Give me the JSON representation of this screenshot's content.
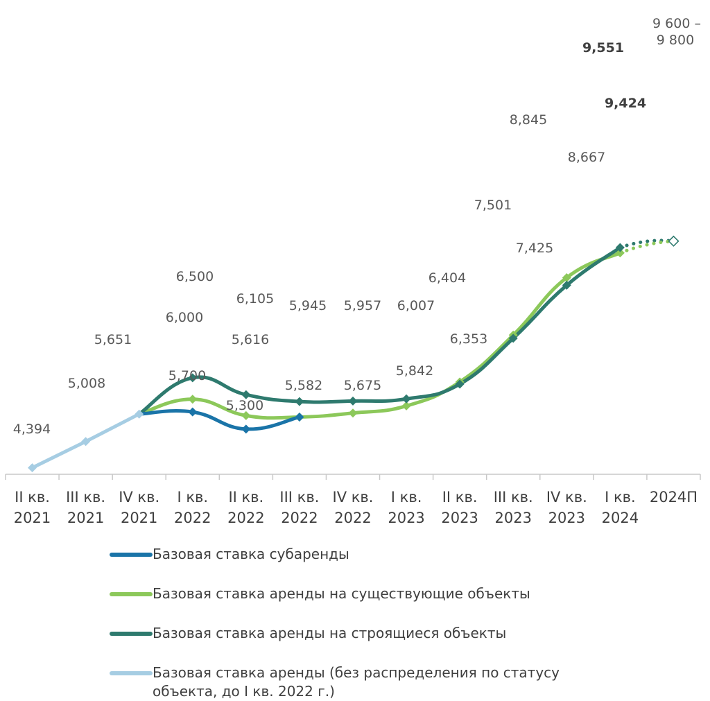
{
  "chart_data": {
    "type": "line",
    "categories": [
      "II кв.\n2021",
      "III кв.\n2021",
      "IV кв.\n2021",
      "I кв.\n2022",
      "II кв.\n2022",
      "III кв.\n2022",
      "IV кв.\n2022",
      "I кв.\n2023",
      "II кв.\n2023",
      "III кв.\n2023",
      "IV кв.\n2023",
      "I кв.\n2024",
      "2024П"
    ],
    "ylim": [
      3500,
      10200
    ],
    "series": [
      {
        "name": "Базовая ставка субаренды",
        "color": "#1a74a8",
        "values": [
          null,
          null,
          5651,
          5700,
          5300,
          5582,
          null,
          null,
          null,
          null,
          null,
          null,
          null
        ],
        "labels": [
          null,
          null,
          null,
          "5,700",
          "5,300",
          null,
          null,
          null,
          null,
          null,
          null,
          null,
          null
        ]
      },
      {
        "name": "Базовая ставка аренды на существующие объекты",
        "color": "#8cc85a",
        "values": [
          null,
          null,
          5651,
          6000,
          5616,
          5582,
          5675,
          5842,
          6404,
          7501,
          8845,
          9424,
          null
        ],
        "labels": [
          null,
          null,
          null,
          "6,000",
          "5,616",
          "5,582",
          "5,675",
          "5,842",
          "6,404",
          "7,501",
          "8,845",
          "9,424",
          null
        ]
      },
      {
        "name": "Базовая ставка аренды на строящиеся объекты",
        "color": "#2e7a6e",
        "values": [
          null,
          null,
          5651,
          6500,
          6105,
          5945,
          5957,
          6007,
          6353,
          7425,
          8667,
          9551,
          null
        ],
        "labels": [
          null,
          null,
          null,
          "6,500",
          "6,105",
          "5,945",
          "5,957",
          "6,007",
          "6,353",
          "7,425",
          "8,667",
          "9,551",
          null
        ]
      },
      {
        "name": "Базовая ставка аренды (без распределения по статусу объекта, до I кв. 2022 г.)",
        "color": "#a6cde3",
        "values": [
          4394,
          5008,
          5651,
          null,
          null,
          null,
          null,
          null,
          null,
          null,
          null,
          null,
          null
        ],
        "labels": [
          "4,394",
          "5,008",
          "5,651",
          null,
          null,
          null,
          null,
          null,
          null,
          null,
          null,
          null,
          null
        ]
      }
    ],
    "forecast": {
      "category": "2024П",
      "value": 9700,
      "range": [
        9600,
        9800
      ],
      "label_line1": "9 600 –",
      "label_line2": "9 800"
    }
  }
}
